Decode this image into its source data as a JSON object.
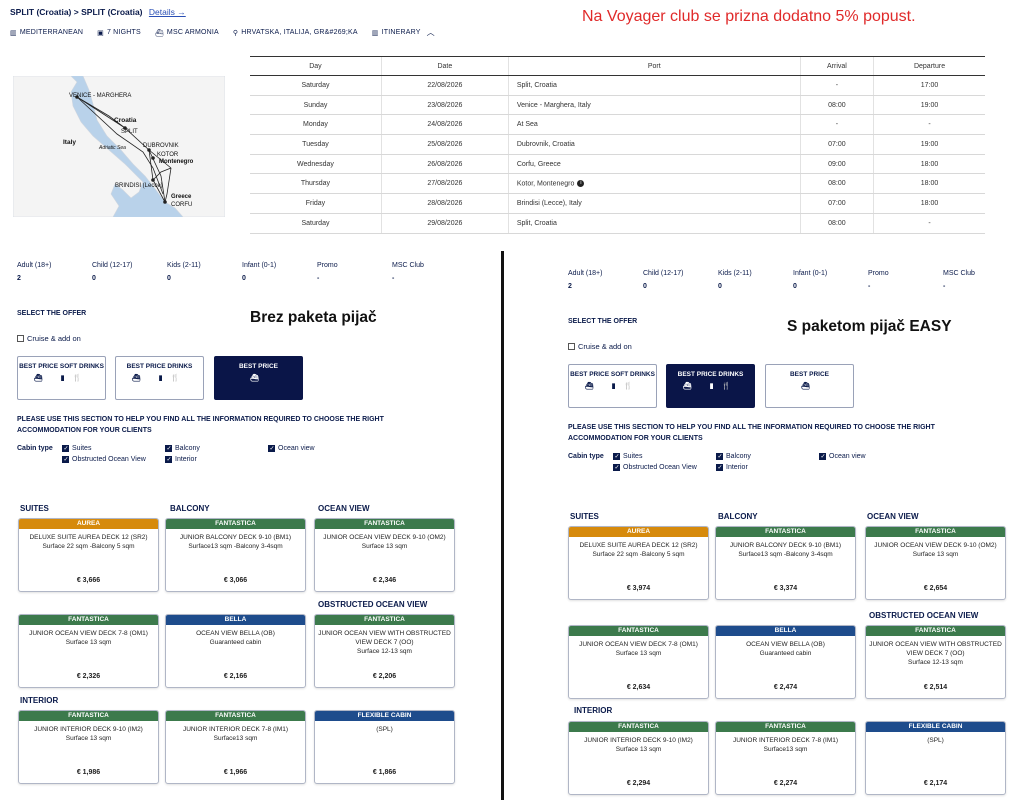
{
  "header": {
    "from": "SPLIT (Croatia)",
    "separator": ">",
    "to": "SPLIT (Croatia)",
    "details_link": "Details →",
    "promo_text": "Na Voyager club se prizna dodatno 5% popust."
  },
  "meta": [
    {
      "icon": "map-icon",
      "glyph": "▥",
      "label": "MEDITERRANEAN"
    },
    {
      "icon": "calendar-icon",
      "glyph": "▣",
      "label": "7 NIGHTS"
    },
    {
      "icon": "ship-icon",
      "glyph": "⛴",
      "label": "MSC ARMONIA"
    },
    {
      "icon": "location-pin-icon",
      "glyph": "⚲",
      "label": "HRVATSKA, ITALIJA, GR&#269;KA"
    },
    {
      "icon": "itinerary-icon",
      "glyph": "▥",
      "label": "ITINERARY"
    }
  ],
  "map": {
    "labels": [
      "VENICE - MARGHERA",
      "Croatia",
      "SPLIT",
      "Italy",
      "Adriatic Sea",
      "DUBROVNIK",
      "KOTOR",
      "Montenegro",
      "BRINDISI (Lecce)",
      "Greece",
      "CORFU"
    ]
  },
  "itinerary": {
    "headers": [
      "Day",
      "Date",
      "Port",
      "Arrival",
      "Departure"
    ],
    "rows": [
      {
        "day": "Saturday",
        "date": "22/08/2026",
        "port": "Split, Croatia",
        "arrival": "-",
        "departure": "17:00"
      },
      {
        "day": "Sunday",
        "date": "23/08/2026",
        "port": "Venice - Marghera, Italy",
        "arrival": "08:00",
        "departure": "19:00"
      },
      {
        "day": "Monday",
        "date": "24/08/2026",
        "port": "At Sea",
        "arrival": "-",
        "departure": "-"
      },
      {
        "day": "Tuesday",
        "date": "25/08/2026",
        "port": "Dubrovnik, Croatia",
        "arrival": "07:00",
        "departure": "19:00"
      },
      {
        "day": "Wednesday",
        "date": "26/08/2026",
        "port": "Corfu, Greece",
        "arrival": "09:00",
        "departure": "18:00"
      },
      {
        "day": "Thursday",
        "date": "27/08/2026",
        "port": "Kotor, Montenegro",
        "arrival": "08:00",
        "departure": "18:00",
        "info": "i"
      },
      {
        "day": "Friday",
        "date": "28/08/2026",
        "port": "Brindisi (Lecce), Italy",
        "arrival": "07:00",
        "departure": "18:00"
      },
      {
        "day": "Saturday",
        "date": "29/08/2026",
        "port": "Split, Croatia",
        "arrival": "08:00",
        "departure": "-"
      }
    ]
  },
  "colors": {
    "aurea": "#d68a0c",
    "fantastica": "#3c7a4c",
    "bella": "#1e4c8c",
    "flexible": "#1e4c8c",
    "selected_offer": "#0a1548",
    "promo": "#e02a2a"
  },
  "panels": [
    {
      "id": "left",
      "label": "Brez paketa pijač",
      "pax": [
        {
          "label": "Adult (18+)",
          "value": "2"
        },
        {
          "label": "Child (12-17)",
          "value": "0"
        },
        {
          "label": "Kids (2-11)",
          "value": "0"
        },
        {
          "label": "Infant (0-1)",
          "value": "0"
        },
        {
          "label": "Promo",
          "value": "-"
        },
        {
          "label": "MSC Club",
          "value": "-"
        }
      ],
      "select_title": "SELECT THE OFFER",
      "cruise_addon": "Cruise & add on",
      "offers": [
        {
          "label": "BEST PRICE SOFT DRINKS",
          "icons": "⛴ ▮🍴",
          "selected": false
        },
        {
          "label": "BEST PRICE DRINKS",
          "icons": "⛴ ▮🍴",
          "selected": false
        },
        {
          "label": "BEST PRICE",
          "icons": "⛴",
          "selected": true
        }
      ],
      "help": "PLEASE USE THIS SECTION TO HELP YOU FIND ALL THE INFORMATION REQUIRED TO CHOOSE THE RIGHT ACCOMMODATION FOR YOUR CLIENTS",
      "cabin_type_label": "Cabin type",
      "cabin_types": [
        "Suites",
        "Balcony",
        "Ocean view",
        "Obstructed Ocean View",
        "Interior"
      ],
      "sections": [
        "SUITES",
        "BALCONY",
        "OCEAN VIEW",
        "OBSTRUCTED OCEAN VIEW",
        "INTERIOR"
      ],
      "cards": [
        {
          "tag": "AUREA",
          "color": "aurea",
          "name": "DELUXE SUITE AUREA DECK 12 (SR2)",
          "size": "Surface 22 sqm -Balcony 5 sqm",
          "price": "€ 3,666"
        },
        {
          "tag": "FANTASTICA",
          "color": "fantastica",
          "name": "JUNIOR BALCONY DECK 9-10 (BM1)",
          "size": "Surface13 sqm -Balcony 3-4sqm",
          "price": "€ 3,066"
        },
        {
          "tag": "FANTASTICA",
          "color": "fantastica",
          "name": "JUNIOR OCEAN VIEW DECK 9-10 (OM2)",
          "size": "Surface 13 sqm",
          "price": "€ 2,346"
        },
        {
          "tag": "FANTASTICA",
          "color": "fantastica",
          "name": "JUNIOR OCEAN VIEW DECK 7-8 (OM1)",
          "size": "Surface 13 sqm",
          "price": "€ 2,326"
        },
        {
          "tag": "BELLA",
          "color": "bella",
          "name": "OCEAN VIEW BELLA (OB)",
          "size": "Guaranteed cabin",
          "price": "€ 2,166"
        },
        {
          "tag": "FANTASTICA",
          "color": "fantastica",
          "name": "JUNIOR OCEAN VIEW WITH OBSTRUCTED VIEW DECK 7 (OO)",
          "size": "Surface 12-13 sqm",
          "price": "€ 2,206"
        },
        {
          "tag": "FANTASTICA",
          "color": "fantastica",
          "name": "JUNIOR INTERIOR DECK 9-10 (IM2)",
          "size": "Surface 13 sqm",
          "price": "€ 1,986"
        },
        {
          "tag": "FANTASTICA",
          "color": "fantastica",
          "name": "JUNIOR INTERIOR DECK 7-8 (IM1)",
          "size": "Surface13 sqm",
          "price": "€ 1,966"
        },
        {
          "tag": "FLEXIBLE CABIN",
          "color": "flexible",
          "name": "(SPL)",
          "size": "",
          "price": "€ 1,866"
        }
      ]
    },
    {
      "id": "right",
      "label": "S paketom pijač EASY",
      "pax": [
        {
          "label": "Adult (18+)",
          "value": "2"
        },
        {
          "label": "Child (12-17)",
          "value": "0"
        },
        {
          "label": "Kids (2-11)",
          "value": "0"
        },
        {
          "label": "Infant (0-1)",
          "value": "0"
        },
        {
          "label": "Promo",
          "value": "-"
        },
        {
          "label": "MSC Club",
          "value": "-"
        }
      ],
      "select_title": "SELECT THE OFFER",
      "cruise_addon": "Cruise & add on",
      "offers": [
        {
          "label": "BEST PRICE SOFT DRINKS",
          "icons": "⛴ ▮🍴",
          "selected": false
        },
        {
          "label": "BEST PRICE DRINKS",
          "icons": "⛴ ▮🍴",
          "selected": true
        },
        {
          "label": "BEST PRICE",
          "icons": "⛴",
          "selected": false
        }
      ],
      "help": "PLEASE USE THIS SECTION TO HELP YOU FIND ALL THE INFORMATION REQUIRED TO CHOOSE THE RIGHT ACCOMMODATION FOR YOUR CLIENTS",
      "cabin_type_label": "Cabin type",
      "cabin_types": [
        "Suites",
        "Balcony",
        "Ocean view",
        "Obstructed Ocean View",
        "Interior"
      ],
      "sections": [
        "SUITES",
        "BALCONY",
        "OCEAN VIEW",
        "OBSTRUCTED OCEAN VIEW",
        "INTERIOR"
      ],
      "cards": [
        {
          "tag": "AUREA",
          "color": "aurea",
          "name": "DELUXE SUITE AUREA DECK 12 (SR2)",
          "size": "Surface 22 sqm -Balcony 5 sqm",
          "price": "€ 3,974"
        },
        {
          "tag": "FANTASTICA",
          "color": "fantastica",
          "name": "JUNIOR BALCONY DECK 9-10 (BM1)",
          "size": "Surface13 sqm -Balcony 3-4sqm",
          "price": "€ 3,374"
        },
        {
          "tag": "FANTASTICA",
          "color": "fantastica",
          "name": "JUNIOR OCEAN VIEW DECK 9-10 (OM2)",
          "size": "Surface 13 sqm",
          "price": "€ 2,654"
        },
        {
          "tag": "FANTASTICA",
          "color": "fantastica",
          "name": "JUNIOR OCEAN VIEW DECK 7-8 (OM1)",
          "size": "Surface 13 sqm",
          "price": "€ 2,634"
        },
        {
          "tag": "BELLA",
          "color": "bella",
          "name": "OCEAN VIEW BELLA (OB)",
          "size": "Guaranteed cabin",
          "price": "€ 2,474"
        },
        {
          "tag": "FANTASTICA",
          "color": "fantastica",
          "name": "JUNIOR OCEAN VIEW WITH OBSTRUCTED VIEW DECK 7 (OO)",
          "size": "Surface 12-13 sqm",
          "price": "€ 2,514"
        },
        {
          "tag": "FANTASTICA",
          "color": "fantastica",
          "name": "JUNIOR INTERIOR DECK 9-10 (IM2)",
          "size": "Surface 13 sqm",
          "price": "€ 2,294"
        },
        {
          "tag": "FANTASTICA",
          "color": "fantastica",
          "name": "JUNIOR INTERIOR DECK 7-8 (IM1)",
          "size": "Surface13 sqm",
          "price": "€ 2,274"
        },
        {
          "tag": "FLEXIBLE CABIN",
          "color": "flexible",
          "name": "(SPL)",
          "size": "",
          "price": "€ 2,174"
        }
      ]
    }
  ]
}
